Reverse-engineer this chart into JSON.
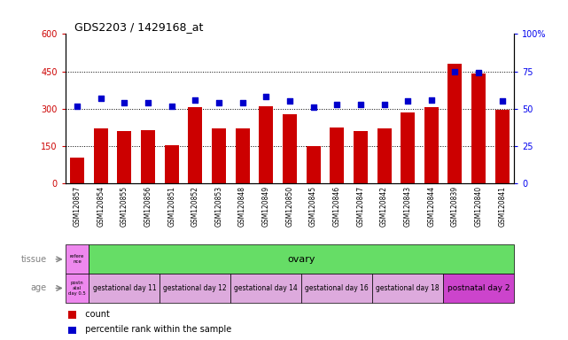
{
  "title": "GDS2203 / 1429168_at",
  "samples": [
    "GSM120857",
    "GSM120854",
    "GSM120855",
    "GSM120856",
    "GSM120851",
    "GSM120852",
    "GSM120853",
    "GSM120848",
    "GSM120849",
    "GSM120850",
    "GSM120845",
    "GSM120846",
    "GSM120847",
    "GSM120842",
    "GSM120843",
    "GSM120844",
    "GSM120839",
    "GSM120840",
    "GSM120841"
  ],
  "counts": [
    105,
    220,
    210,
    215,
    155,
    305,
    220,
    220,
    310,
    280,
    150,
    225,
    210,
    220,
    285,
    305,
    480,
    440,
    295
  ],
  "percentiles": [
    52,
    57,
    54,
    54,
    52,
    56,
    54,
    54,
    58,
    55,
    51,
    53,
    53,
    53,
    55,
    56,
    75,
    74,
    55
  ],
  "bar_color": "#cc0000",
  "dot_color": "#0000cc",
  "left_ylim": [
    0,
    600
  ],
  "right_ylim": [
    0,
    100
  ],
  "left_yticks": [
    0,
    150,
    300,
    450,
    600
  ],
  "right_yticks": [
    0,
    25,
    50,
    75,
    100
  ],
  "tissue_ref_label": "refere\nnce",
  "tissue_ref_color": "#ee88ee",
  "tissue_main_label": "ovary",
  "tissue_main_color": "#66dd66",
  "age_ref_label": "postn\natal\nday 0.5",
  "age_ref_color": "#ee88ee",
  "age_groups": [
    {
      "label": "gestational day 11",
      "color": "#ddaadd",
      "count": 3
    },
    {
      "label": "gestational day 12",
      "color": "#ddaadd",
      "count": 3
    },
    {
      "label": "gestational day 14",
      "color": "#ddaadd",
      "count": 3
    },
    {
      "label": "gestational day 16",
      "color": "#ddaadd",
      "count": 3
    },
    {
      "label": "gestational day 18",
      "color": "#ddaadd",
      "count": 3
    },
    {
      "label": "postnatal day 2",
      "color": "#cc44cc",
      "count": 3
    }
  ],
  "background_color": "#ffffff",
  "plot_bg": "#ffffff",
  "left_label_color": "#cc0000",
  "right_label_color": "#0000ee"
}
